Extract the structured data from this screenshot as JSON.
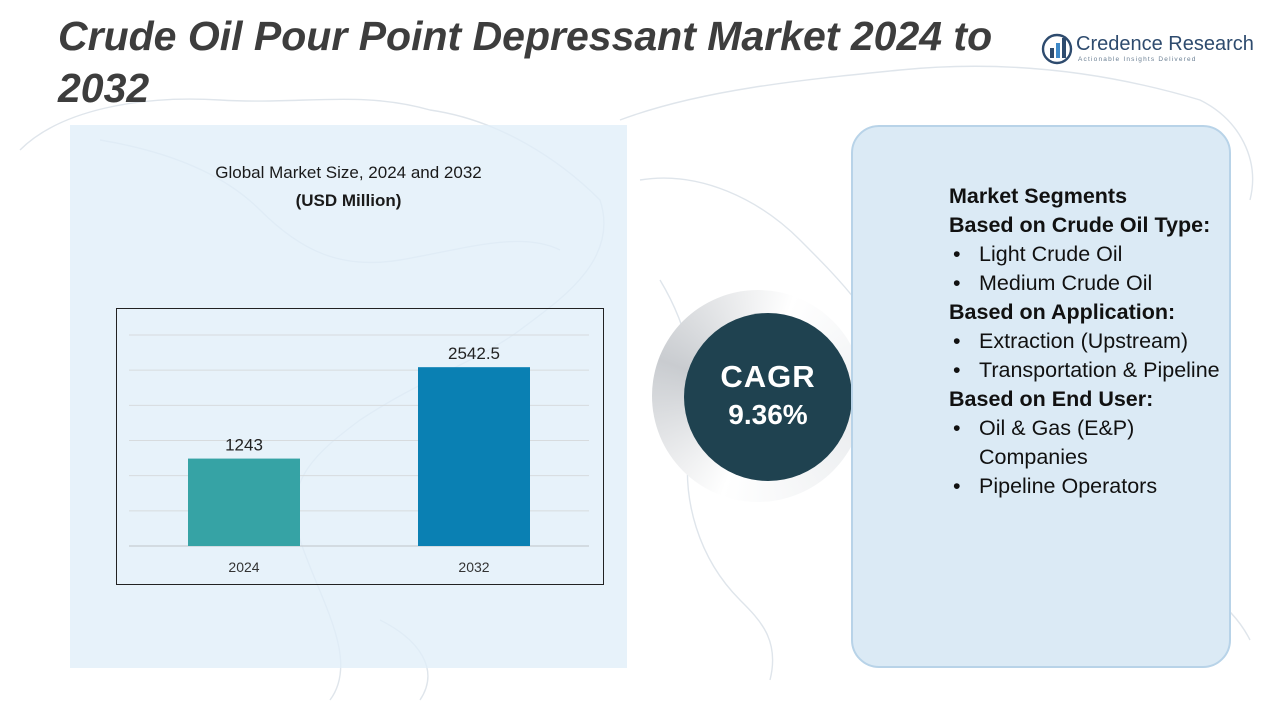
{
  "title": "Crude Oil Pour Point Depressant Market 2024 to 2032",
  "logo": {
    "name": "Credence Research",
    "tagline": "Actionable Insights Delivered",
    "icon": "bar-chart-globe-icon"
  },
  "chart_heading": "Global Market Size, 2024 and 2032",
  "chart_unit": "(USD Million)",
  "chart_data": {
    "type": "bar",
    "categories": [
      "2024",
      "2032"
    ],
    "values": [
      1243,
      2542.5
    ],
    "value_labels": [
      "1243",
      "2542.5"
    ],
    "colors": [
      "#36a3a5",
      "#0a80b3"
    ],
    "ylim": [
      0,
      3000
    ],
    "grid": true
  },
  "cagr": {
    "label": "CAGR",
    "value": "9.36%"
  },
  "segments": {
    "heading": "Market Segments",
    "groups": [
      {
        "title": "Based on Crude Oil Type:",
        "items": [
          "Light Crude Oil",
          "Medium Crude Oil"
        ]
      },
      {
        "title": "Based on Application:",
        "items": [
          "Extraction (Upstream)",
          "Transportation & Pipeline"
        ]
      },
      {
        "title": "Based on End User:",
        "items": [
          "Oil & Gas (E&P) Companies",
          "Pipeline Operators"
        ]
      }
    ]
  },
  "colors": {
    "title": "#3d3d3d",
    "cagr_circle": "#1f4250",
    "panel": "#dbeaf5"
  }
}
